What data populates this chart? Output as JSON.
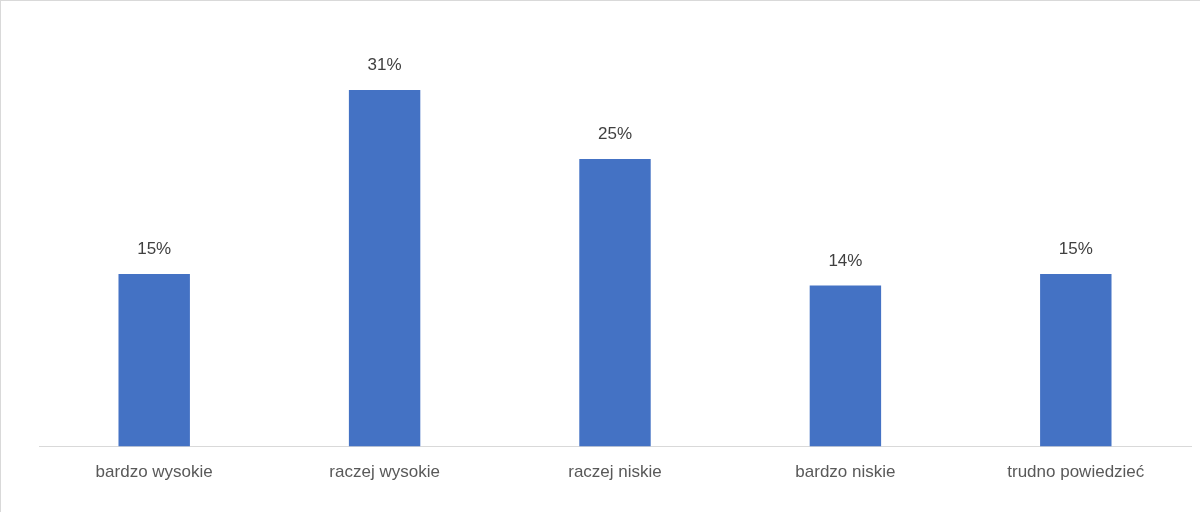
{
  "chart_data": {
    "type": "bar",
    "categories": [
      "bardzo wysokie",
      "raczej wysokie",
      "raczej niskie",
      "bardzo niskie",
      "trudno powiedzieć"
    ],
    "values": [
      15,
      31,
      25,
      14,
      15
    ],
    "value_labels": [
      "15%",
      "31%",
      "25%",
      "14%",
      "15%"
    ],
    "color": "#4472c4",
    "grid": false,
    "legend": false
  }
}
